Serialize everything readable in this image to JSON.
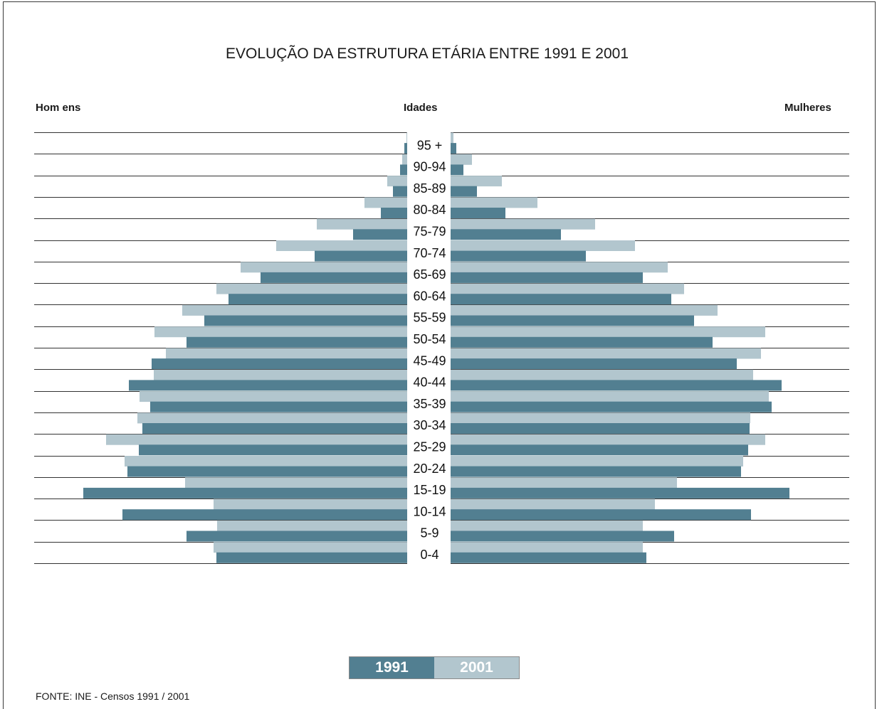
{
  "title": "EVOLUÇÃO DA ESTRUTURA ETÁRIA ENTRE 1991 E 2001",
  "headers": {
    "left": "Hom ens",
    "center": "Idades",
    "right": "Mulheres"
  },
  "legend": {
    "y1991": "1991",
    "y2001": "2001"
  },
  "source": "FONTE: INE - Censos 1991 / 2001",
  "colors": {
    "c1991": "#527f91",
    "c2001": "#b2c6ce"
  },
  "chart_data": {
    "type": "bar",
    "orientation": "horizontal",
    "layout": "population-pyramid",
    "categories": [
      "95 +",
      "90-94",
      "85-89",
      "80-84",
      "75-79",
      "70-74",
      "65-69",
      "60-64",
      "55-59",
      "50-54",
      "45-49",
      "40-44",
      "35-39",
      "30-34",
      "25-29",
      "20-24",
      "15-19",
      "10-14",
      "5-9",
      "0-4"
    ],
    "axis": "no numeric scale shown (relative bar lengths)",
    "series": [
      {
        "name": "1991",
        "group": "Homens",
        "values": [
          4,
          10,
          20,
          37,
          76,
          130,
          206,
          251,
          285,
          310,
          359,
          391,
          361,
          372,
          377,
          393,
          455,
          400,
          310,
          268
        ]
      },
      {
        "name": "2001",
        "group": "Homens",
        "values": [
          1,
          7,
          28,
          60,
          127,
          184,
          234,
          268,
          316,
          355,
          339,
          356,
          376,
          379,
          423,
          397,
          312,
          272,
          267,
          272
        ]
      },
      {
        "name": "1991",
        "group": "Mulheres",
        "values": [
          8,
          18,
          37,
          77,
          155,
          190,
          270,
          310,
          342,
          368,
          402,
          465,
          451,
          420,
          418,
          408,
          476,
          422,
          314,
          275
        ]
      },
      {
        "name": "2001",
        "group": "Mulheres",
        "values": [
          4,
          30,
          72,
          122,
          203,
          259,
          305,
          328,
          375,
          442,
          436,
          425,
          447,
          421,
          442,
          411,
          318,
          287,
          270,
          270
        ]
      }
    ]
  }
}
